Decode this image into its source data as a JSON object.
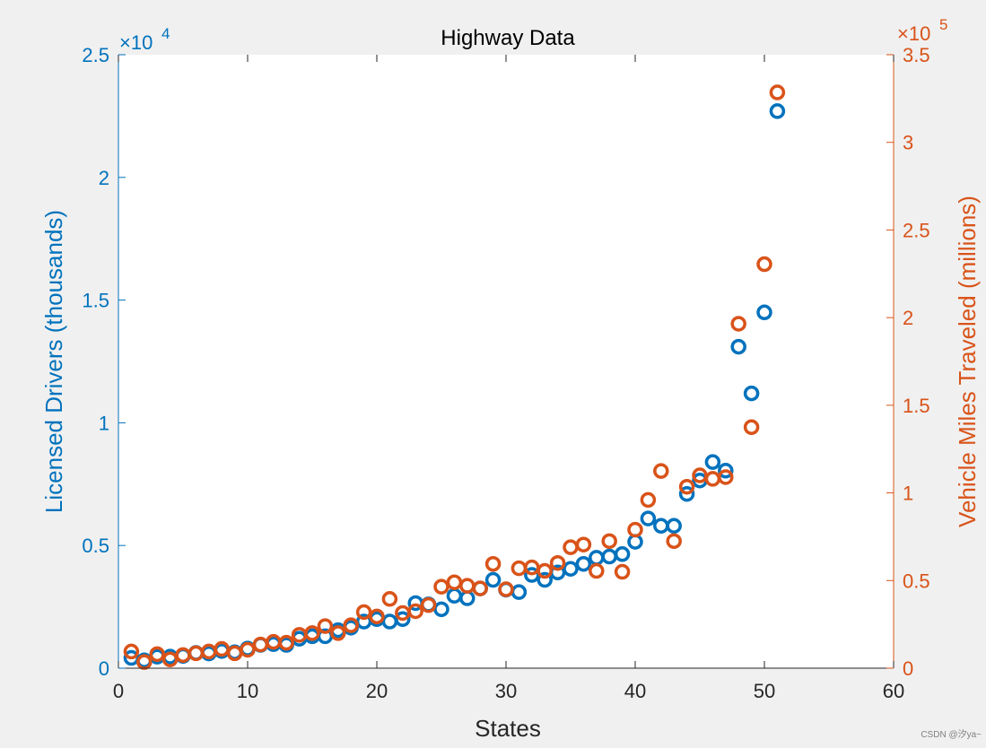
{
  "chart_data": {
    "type": "scatter",
    "title": "Highway Data",
    "xlabel": "States",
    "xlim": [
      0,
      60
    ],
    "xticks": [
      "0",
      "10",
      "20",
      "30",
      "40",
      "50",
      "60"
    ],
    "left_axis": {
      "label": "Licensed Drivers (thousands)",
      "ylim": [
        0,
        25000
      ],
      "ticks": [
        "0",
        "0.5",
        "1",
        "1.5",
        "2",
        "2.5"
      ],
      "tick_values": [
        0,
        5000,
        10000,
        15000,
        20000,
        25000
      ],
      "exponent_base": "×10",
      "exponent_power": "4",
      "color": "#0072bd"
    },
    "right_axis": {
      "label": "Vehicle Miles Traveled (millions)",
      "ylim": [
        0,
        350000
      ],
      "ticks": [
        "0",
        "0.5",
        "1",
        "1.5",
        "2",
        "2.5",
        "3",
        "3.5"
      ],
      "tick_values": [
        0,
        50000,
        100000,
        150000,
        200000,
        250000,
        300000,
        350000
      ],
      "exponent_base": "×10",
      "exponent_power": "5",
      "color": "#d95319"
    },
    "grid": false,
    "series": [
      {
        "axis": "left",
        "marker": "circle",
        "color": "#0072bd",
        "x": [
          1,
          2,
          3,
          4,
          5,
          6,
          7,
          8,
          9,
          10,
          11,
          12,
          13,
          14,
          15,
          16,
          17,
          18,
          19,
          20,
          21,
          22,
          23,
          24,
          25,
          26,
          27,
          28,
          29,
          30,
          31,
          32,
          33,
          34,
          35,
          36,
          37,
          38,
          39,
          40,
          41,
          42,
          43,
          44,
          45,
          46,
          47,
          48,
          49,
          50,
          51
        ],
        "values": [
          420,
          320,
          470,
          470,
          500,
          620,
          600,
          700,
          650,
          800,
          950,
          980,
          950,
          1200,
          1300,
          1300,
          1550,
          1650,
          1900,
          2000,
          1900,
          2000,
          2650,
          2600,
          2400,
          2950,
          2850,
          3250,
          3600,
          3200,
          3100,
          3800,
          3600,
          3900,
          4050,
          4250,
          4500,
          4550,
          4650,
          5150,
          6100,
          5800,
          5800,
          7100,
          7650,
          8400,
          8050,
          13100,
          11200,
          14500,
          22700
        ]
      },
      {
        "axis": "right",
        "marker": "circle",
        "color": "#d95319",
        "x": [
          1,
          2,
          3,
          4,
          5,
          6,
          7,
          8,
          9,
          10,
          11,
          12,
          13,
          14,
          15,
          16,
          17,
          18,
          19,
          20,
          21,
          22,
          23,
          24,
          25,
          26,
          27,
          28,
          29,
          30,
          31,
          32,
          33,
          34,
          35,
          36,
          37,
          38,
          39,
          40,
          41,
          42,
          43,
          44,
          45,
          46,
          47,
          48,
          49,
          50,
          51
        ],
        "values": [
          9500,
          3500,
          8000,
          5000,
          7500,
          8500,
          9500,
          11000,
          8500,
          10500,
          13500,
          15000,
          14500,
          19000,
          20000,
          24000,
          20000,
          24500,
          32000,
          29500,
          39500,
          31500,
          32500,
          36000,
          46500,
          49000,
          47000,
          45500,
          59500,
          45000,
          57000,
          57500,
          55500,
          60000,
          69000,
          70500,
          55500,
          72500,
          55000,
          79000,
          96000,
          112500,
          72500,
          103500,
          110000,
          108000,
          109000,
          196500,
          137500,
          230500,
          328500
        ]
      }
    ]
  },
  "watermark": "CSDN @汐ya~"
}
